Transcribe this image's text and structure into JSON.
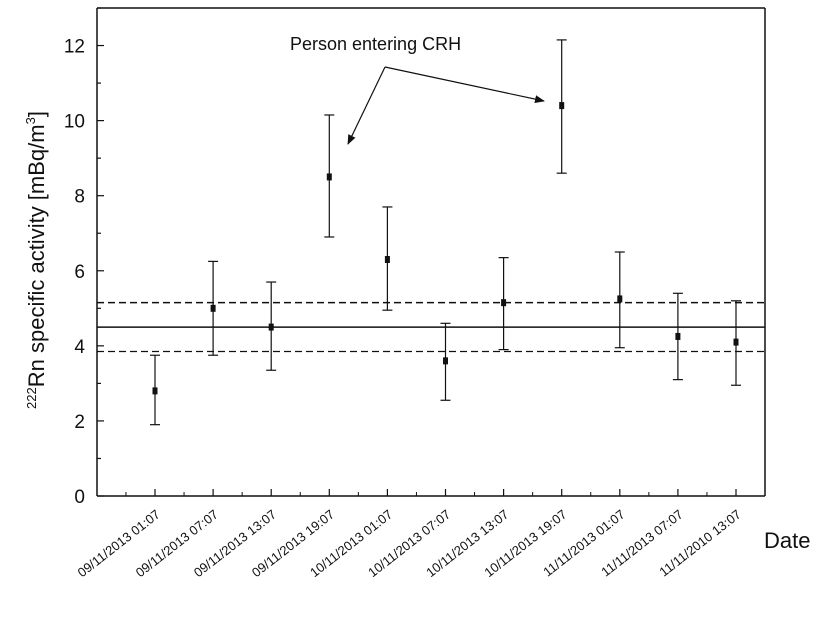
{
  "chart_data": {
    "type": "scatter",
    "xlabel": "Date",
    "ylabel_prefix": "222",
    "ylabel_main": "Rn specific activity [mBq/m",
    "ylabel_sup": "3",
    "ylabel_close": "]",
    "ylim": [
      0,
      13
    ],
    "yticks": [
      0,
      2,
      4,
      6,
      8,
      10,
      12
    ],
    "categories": [
      "09/11/2013 01:07",
      "09/11/2013 07:07",
      "09/11/2013 13:07",
      "09/11/2013 19:07",
      "10/11/2013 01:07",
      "10/11/2013 07:07",
      "10/11/2013 13:07",
      "10/11/2013 19:07",
      "11/11/2013 01:07",
      "11/11/2013 07:07",
      "11/11/2010 13:07"
    ],
    "series": [
      {
        "values": [
          2.8,
          5.0,
          4.5,
          8.5,
          6.3,
          3.6,
          5.15,
          10.4,
          5.25,
          4.25,
          4.1
        ],
        "err_low": [
          1.9,
          3.75,
          3.35,
          6.9,
          4.95,
          2.55,
          3.9,
          8.6,
          3.95,
          3.1,
          2.95
        ],
        "err_high": [
          3.75,
          6.25,
          5.7,
          10.15,
          7.7,
          4.6,
          6.35,
          12.15,
          6.5,
          5.4,
          5.2
        ]
      }
    ],
    "reference_lines": {
      "mean": 4.5,
      "upper": 5.15,
      "lower": 3.85
    },
    "annotation": {
      "text": "Person entering CRH",
      "targets": [
        3,
        7
      ]
    },
    "grid": false
  }
}
